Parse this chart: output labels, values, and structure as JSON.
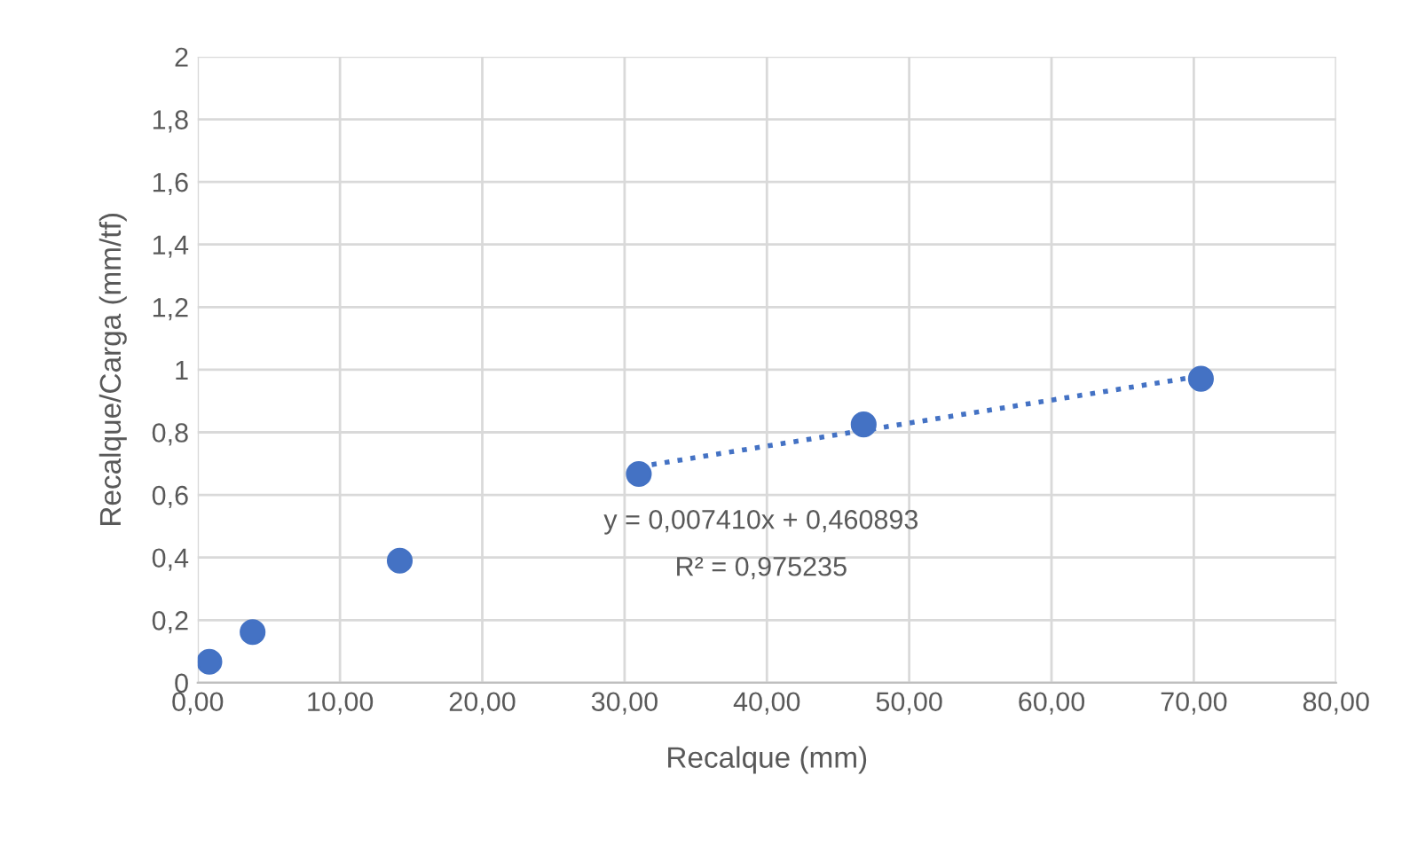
{
  "chart_data": {
    "type": "scatter",
    "xlabel": "Recalque (mm)",
    "ylabel": "Recalque/Carga (mm/tf)",
    "x": [
      0.82,
      3.86,
      14.2,
      31.0,
      46.8,
      70.5
    ],
    "series": [
      {
        "color": "#4472c4",
        "marker": "circle",
        "values": [
          0.067,
          0.162,
          0.39,
          0.667,
          0.825,
          0.971
        ]
      },
      {
        "type": "line",
        "color": "#4472c4",
        "line_style": "dotted",
        "marker": "none",
        "x": [
          31.0,
          70.5
        ],
        "values": [
          0.69,
          0.98
        ]
      }
    ],
    "annotations": [
      "y = 0,007410x + 0,460893",
      "R² = 0,975235"
    ],
    "xlim": [
      0,
      80
    ],
    "ylim": [
      0,
      2
    ],
    "xticks": [
      {
        "value": 0,
        "label": "0,00"
      },
      {
        "value": 10,
        "label": "10,00"
      },
      {
        "value": 20,
        "label": "20,00"
      },
      {
        "value": 30,
        "label": "30,00"
      },
      {
        "value": 40,
        "label": "40,00"
      },
      {
        "value": 50,
        "label": "50,00"
      },
      {
        "value": 60,
        "label": "60,00"
      },
      {
        "value": 70,
        "label": "70,00"
      },
      {
        "value": 80,
        "label": "80,00"
      }
    ],
    "yticks": [
      0,
      {
        "value": 0.2,
        "label": "0,2"
      },
      {
        "value": 0.4,
        "label": "0,4"
      },
      {
        "value": 0.6,
        "label": "0,6"
      },
      {
        "value": 0.8,
        "label": "0,8"
      },
      1,
      {
        "value": 1.2,
        "label": "1,2"
      },
      {
        "value": 1.4,
        "label": "1,4"
      },
      {
        "value": 1.6,
        "label": "1,6"
      },
      {
        "value": 1.8,
        "label": "1,8"
      },
      2
    ],
    "grid": true,
    "legend": false
  }
}
